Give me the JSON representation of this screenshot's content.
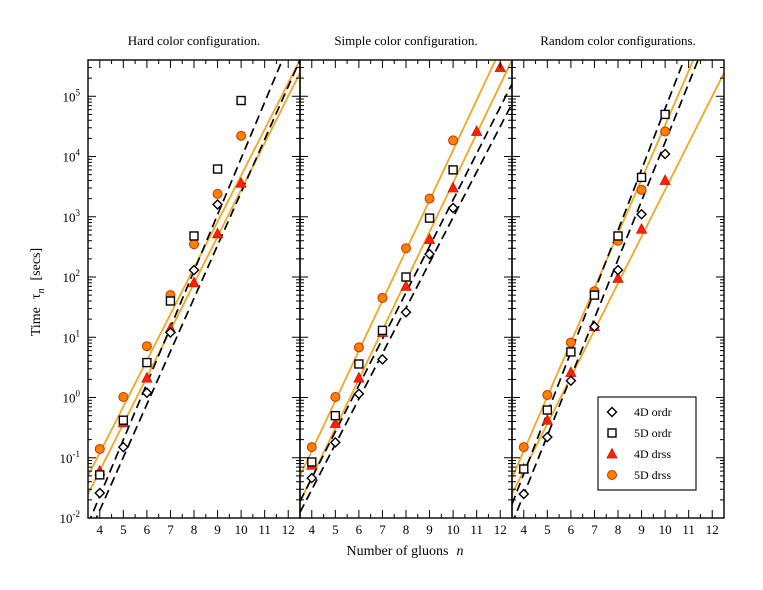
{
  "chart_data": {
    "type": "scatter",
    "y_scale": "log",
    "xlabel": "Number of gluons",
    "xlabel_symbol": "n",
    "ylabel": "Time",
    "ylabel_symbol": "τ",
    "ylabel_subscript": "n",
    "ylabel_unit": "[secs]",
    "xlim": [
      3.5,
      12.5
    ],
    "ylim": [
      0.01,
      400000
    ],
    "xticks": [
      "4",
      "5",
      "6",
      "7",
      "8",
      "9",
      "10",
      "11",
      "12"
    ],
    "ytick_mantissa": "10",
    "ytick_exponents": [
      "-2",
      "-1",
      "0",
      "1",
      "2",
      "3",
      "4",
      "5"
    ],
    "legend": {
      "position": "bottom-right of third panel",
      "entries": [
        {
          "series": "4D ordr",
          "label": "4D ordr"
        },
        {
          "series": "5D ordr",
          "label": "5D ordr"
        },
        {
          "series": "4D drss",
          "label": "4D drss"
        },
        {
          "series": "5D drss",
          "label": "5D drss"
        }
      ]
    },
    "styles": {
      "4D ordr": {
        "marker": "diamond",
        "stroke": "#000000",
        "fill": "#ffffff",
        "fit_line": "dashed",
        "fit_color": "#000000"
      },
      "5D ordr": {
        "marker": "square",
        "stroke": "#000000",
        "fill": "#ffffff",
        "fit_line": "dashed",
        "fit_color": "#000000"
      },
      "4D drss": {
        "marker": "triangle",
        "stroke": "#cc1100",
        "fill": "#ff2200",
        "fit_line": "solid",
        "fit_color": "#f5a623"
      },
      "5D drss": {
        "marker": "circle",
        "stroke": "#cc3300",
        "fill": "#ff7f00",
        "fit_line": "solid",
        "fit_color": "#f5a623"
      }
    },
    "panels": [
      {
        "title": "Hard color configuration.",
        "series": [
          {
            "name": "4D ordr",
            "x": [
              4,
              5,
              6,
              7,
              8,
              9
            ],
            "y": [
              0.026,
              0.15,
              1.2,
              12,
              130,
              1600
            ],
            "fit": {
              "x0": 3.5,
              "y0": 0.0049,
              "x1": 12.5,
              "y1": 400000
            }
          },
          {
            "name": "5D ordr",
            "x": [
              4,
              5,
              6,
              7,
              8,
              9,
              10
            ],
            "y": [
              0.052,
              0.42,
              3.8,
              40,
              480,
              6200,
              85000
            ],
            "fit": {
              "x0": 3.5,
              "y0": 0.0079,
              "x1": 11.75,
              "y1": 400000
            }
          },
          {
            "name": "4D drss",
            "x": [
              4,
              5,
              6,
              7,
              8,
              9,
              10
            ],
            "y": [
              0.06,
              0.38,
              2.1,
              14,
              80,
              520,
              3600
            ],
            "fit": {
              "x0": 3.5,
              "y0": 0.025,
              "x1": 12.5,
              "y1": 245000
            }
          },
          {
            "name": "5D drss",
            "x": [
              4,
              5,
              6,
              7,
              8,
              9,
              10
            ],
            "y": [
              0.14,
              1.02,
              7.1,
              50,
              350,
              2400,
              22000
            ],
            "fit": {
              "x0": 3.5,
              "y0": 0.05,
              "x1": 12.5,
              "y1": 400000
            }
          }
        ]
      },
      {
        "title": "Simple color configuration.",
        "series": [
          {
            "name": "4D ordr",
            "x": [
              4,
              5,
              6,
              7,
              8,
              9,
              10
            ],
            "y": [
              0.046,
              0.18,
              1.15,
              4.3,
              26,
              240,
              1400
            ],
            "fit": {
              "x0": 3.5,
              "y0": 0.0124,
              "x1": 12.5,
              "y1": 75000
            }
          },
          {
            "name": "5D ordr",
            "x": [
              4,
              5,
              6,
              7,
              8,
              9,
              10
            ],
            "y": [
              0.085,
              0.5,
              3.6,
              13,
              100,
              950,
              6000
            ],
            "fit": {
              "x0": 3.5,
              "y0": 0.019,
              "x1": 12.5,
              "y1": 160000
            }
          },
          {
            "name": "4D drss",
            "x": [
              4,
              5,
              6,
              7,
              8,
              9,
              10,
              11,
              12
            ],
            "y": [
              0.075,
              0.37,
              2.1,
              12,
              70,
              420,
              3000,
              26000,
              300000
            ],
            "fit": {
              "x0": 3.5,
              "y0": 0.0185,
              "x1": 12.5,
              "y1": 400000
            }
          },
          {
            "name": "5D drss",
            "x": [
              4,
              5,
              6,
              7,
              8,
              9,
              10
            ],
            "y": [
              0.15,
              1.02,
              6.8,
              45,
              300,
              2000,
              18500
            ],
            "fit": {
              "x0": 3.5,
              "y0": 0.05,
              "x1": 11.8,
              "y1": 400000
            }
          }
        ]
      },
      {
        "title": "Random color configurations.",
        "series": [
          {
            "name": "4D ordr",
            "x": [
              4,
              5,
              6,
              7,
              8,
              9,
              10
            ],
            "y": [
              0.025,
              0.22,
              1.9,
              15,
              130,
              1100,
              11000
            ],
            "fit": {
              "x0": 3.5,
              "y0": 0.008,
              "x1": 11.4,
              "y1": 400000
            }
          },
          {
            "name": "5D ordr",
            "x": [
              4,
              5,
              6,
              7,
              8,
              9,
              10
            ],
            "y": [
              0.065,
              0.62,
              5.7,
              50,
              480,
              4500,
              50000
            ],
            "fit": {
              "x0": 3.5,
              "y0": 0.0169,
              "x1": 10.8,
              "y1": 400000
            }
          },
          {
            "name": "4D drss",
            "x": [
              4,
              5,
              6,
              7,
              8,
              9,
              10
            ],
            "y": [
              0.065,
              0.42,
              2.6,
              15,
              95,
              620,
              4000
            ],
            "fit": {
              "x0": 3.5,
              "y0": 0.025,
              "x1": 12.5,
              "y1": 245000
            }
          },
          {
            "name": "5D drss",
            "x": [
              4,
              5,
              6,
              7,
              8,
              9,
              10
            ],
            "y": [
              0.15,
              1.1,
              8.2,
              58,
              400,
              2800,
              26000
            ],
            "fit": {
              "x0": 3.5,
              "y0": 0.046,
              "x1": 11.2,
              "y1": 400000
            }
          }
        ]
      }
    ]
  }
}
